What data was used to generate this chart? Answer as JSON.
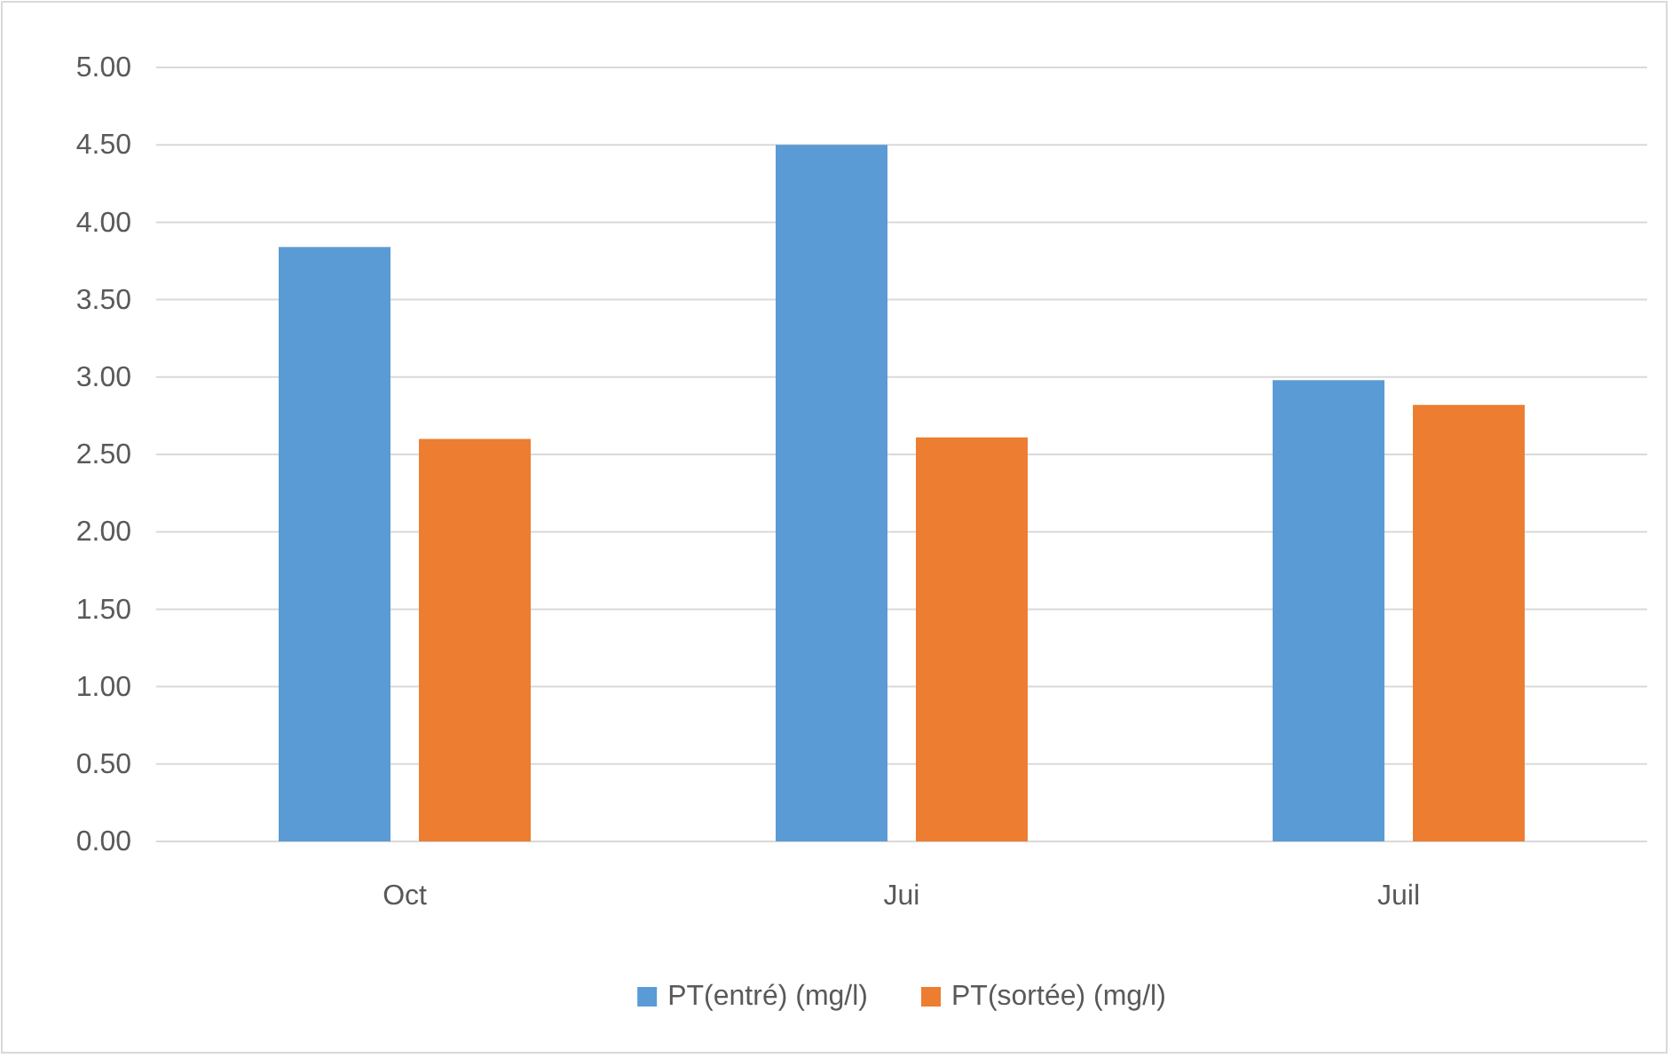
{
  "chart_data": {
    "type": "bar",
    "categories": [
      "Oct",
      "Jui",
      "Juil"
    ],
    "series": [
      {
        "name": "PT(entré) (mg/l)",
        "color": "#5b9bd5",
        "values": [
          3.84,
          4.5,
          2.98
        ]
      },
      {
        "name": "PT(sortée) (mg/l)",
        "color": "#ed7d31",
        "values": [
          2.6,
          2.61,
          2.82
        ]
      }
    ],
    "ylim": [
      0,
      5
    ],
    "yticks": [
      {
        "value": 0,
        "label": "0.00"
      },
      {
        "value": 0.5,
        "label": "0.50"
      },
      {
        "value": 1,
        "label": "1.00"
      },
      {
        "value": 1.5,
        "label": "1.50"
      },
      {
        "value": 2,
        "label": "2.00"
      },
      {
        "value": 2.5,
        "label": "2.50"
      },
      {
        "value": 3,
        "label": "3.00"
      },
      {
        "value": 3.5,
        "label": "3.50"
      },
      {
        "value": 4,
        "label": "4.00"
      },
      {
        "value": 4.5,
        "label": "4.50"
      },
      {
        "value": 5,
        "label": "5.00"
      }
    ],
    "grid": "y",
    "legend": "bottom"
  }
}
